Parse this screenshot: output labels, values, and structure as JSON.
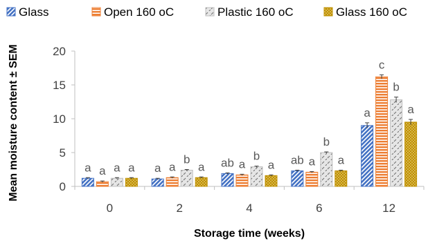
{
  "chart_data": {
    "type": "bar",
    "title": "",
    "xlabel": "Storage time (weeks)",
    "ylabel": "Mean moisture content ± SEM",
    "ylim": [
      0,
      20
    ],
    "yticks": [
      "0",
      "5",
      "10",
      "15",
      "20"
    ],
    "categories": [
      "0",
      "2",
      "4",
      "6",
      "12"
    ],
    "grid": false,
    "legend_position": "top",
    "series": [
      {
        "name": "Glass",
        "color": "#4472C4",
        "pattern": "diagonal-stripes",
        "values": [
          1.2,
          1.1,
          1.9,
          2.3,
          9.0
        ],
        "errors": [
          0.1,
          0.1,
          0.1,
          0.1,
          0.4
        ],
        "letters": [
          "a",
          "a",
          "ab",
          "ab",
          "a"
        ]
      },
      {
        "name": "Open 160 oC",
        "color": "#ED7D31",
        "pattern": "horizontal-stripes",
        "values": [
          0.7,
          1.3,
          1.7,
          2.1,
          16.2
        ],
        "errors": [
          0.1,
          0.1,
          0.1,
          0.1,
          0.3
        ],
        "letters": [
          "a",
          "a",
          "a",
          "a",
          "c"
        ]
      },
      {
        "name": "Plastic 160 oC",
        "color": "#BFBFBF",
        "pattern": "dashed-diagonal",
        "values": [
          1.2,
          2.4,
          2.9,
          5.0,
          12.8
        ],
        "errors": [
          0.1,
          0.1,
          0.1,
          0.1,
          0.4
        ],
        "letters": [
          "a",
          "b",
          "b",
          "b",
          "b"
        ]
      },
      {
        "name": "Glass 160 oC",
        "color": "#BF9000",
        "pattern": "dotted",
        "values": [
          1.2,
          1.3,
          1.6,
          2.3,
          9.5
        ],
        "errors": [
          0.1,
          0.1,
          0.1,
          0.1,
          0.4
        ],
        "letters": [
          "a",
          "a",
          "a",
          "a",
          "a"
        ]
      }
    ]
  }
}
